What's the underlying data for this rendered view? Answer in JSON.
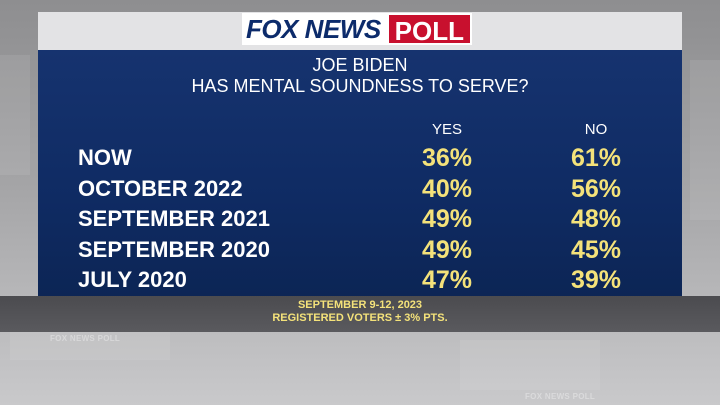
{
  "logo": {
    "fox_news": "FOX NEWS",
    "poll": "POLL"
  },
  "chart_data": {
    "type": "table",
    "title_line1": "JOE BIDEN",
    "title_line2": "HAS MENTAL SOUNDNESS TO SERVE?",
    "columns": [
      "YES",
      "NO"
    ],
    "rows": [
      {
        "label": "NOW",
        "yes": "36%",
        "no": "61%"
      },
      {
        "label": "OCTOBER 2022",
        "yes": "40%",
        "no": "56%"
      },
      {
        "label": "SEPTEMBER 2021",
        "yes": "49%",
        "no": "48%"
      },
      {
        "label": "SEPTEMBER 2020",
        "yes": "49%",
        "no": "45%"
      },
      {
        "label": "JULY 2020",
        "yes": "47%",
        "no": "39%"
      }
    ]
  },
  "footer": {
    "dates": "SEPTEMBER 9-12, 2023",
    "sample": "REGISTERED VOTERS ± 3% PTS."
  },
  "watermarks": {
    "text": "FOX NEWS POLL"
  },
  "colors": {
    "panel": "#0f2b63",
    "values": "#f4e27a",
    "poll_red": "#c8102e",
    "fox_blue": "#0c2b6b"
  }
}
